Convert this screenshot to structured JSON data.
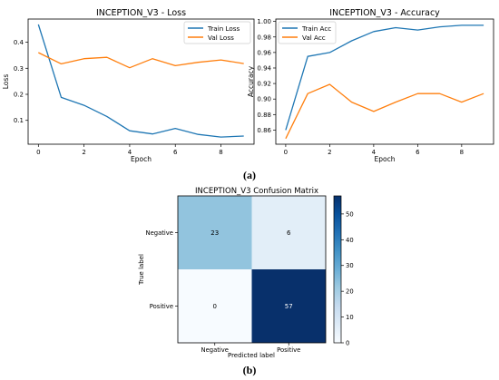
{
  "panel_labels": [
    "(a)",
    "(b)"
  ],
  "colors": {
    "train": "#1f77b4",
    "val": "#ff7f0e"
  },
  "chart_data": [
    {
      "type": "line",
      "title": "INCEPTION_V3 - Loss",
      "xlabel": "Epoch",
      "ylabel": "Loss",
      "x": [
        0,
        1,
        2,
        3,
        4,
        5,
        6,
        7,
        8,
        9
      ],
      "xlim": [
        -0.45,
        9.45
      ],
      "ylim": [
        0.0085,
        0.489
      ],
      "xticks": [
        0,
        2,
        4,
        6,
        8
      ],
      "yticks": [
        0.1,
        0.2,
        0.3,
        0.4
      ],
      "xticklabels": [
        "0",
        "2",
        "4",
        "6",
        "8"
      ],
      "yticklabels": [
        "0.1",
        "0.2",
        "0.3",
        "0.4"
      ],
      "legend_position": "top-right",
      "series": [
        {
          "name": "Train Loss",
          "color": "#1f77b4",
          "values": [
            0.468,
            0.188,
            0.158,
            0.115,
            0.06,
            0.048,
            0.069,
            0.046,
            0.036,
            0.04
          ]
        },
        {
          "name": "Val Loss",
          "color": "#ff7f0e",
          "values": [
            0.36,
            0.317,
            0.337,
            0.342,
            0.302,
            0.337,
            0.31,
            0.323,
            0.332,
            0.318
          ]
        }
      ]
    },
    {
      "type": "line",
      "title": "INCEPTION_V3 - Accuracy",
      "xlabel": "Epoch",
      "ylabel": "Accuracy",
      "x": [
        0,
        1,
        2,
        3,
        4,
        5,
        6,
        7,
        8,
        9
      ],
      "xlim": [
        -0.45,
        9.45
      ],
      "ylim": [
        0.8418,
        1.0031
      ],
      "xticks": [
        0,
        2,
        4,
        6,
        8
      ],
      "yticks": [
        0.86,
        0.88,
        0.9,
        0.92,
        0.94,
        0.96,
        0.98,
        1.0
      ],
      "xticklabels": [
        "0",
        "2",
        "4",
        "6",
        "8"
      ],
      "yticklabels": [
        "0.86",
        "0.88",
        "0.90",
        "0.92",
        "0.94",
        "0.96",
        "0.98",
        "1.00"
      ],
      "legend_position": "top-left",
      "series": [
        {
          "name": "Train Acc",
          "color": "#1f77b4",
          "values": [
            0.86,
            0.955,
            0.96,
            0.975,
            0.987,
            0.992,
            0.989,
            0.993,
            0.995,
            0.995
          ]
        },
        {
          "name": "Val Acc",
          "color": "#ff7f0e",
          "values": [
            0.849,
            0.907,
            0.919,
            0.896,
            0.884,
            0.896,
            0.907,
            0.907,
            0.896,
            0.907
          ]
        }
      ]
    },
    {
      "type": "heatmap",
      "title": "INCEPTION_V3 Confusion Matrix",
      "xlabel": "Predicted label",
      "ylabel": "True label",
      "row_labels": [
        "Negative",
        "Positive"
      ],
      "col_labels": [
        "Negative",
        "Positive"
      ],
      "values": [
        [
          23,
          6
        ],
        [
          0,
          57
        ]
      ],
      "colorbar_range": [
        0,
        57
      ],
      "colorbar_ticks": [
        0,
        10,
        20,
        30,
        40,
        50
      ],
      "colormap": "Blues"
    }
  ]
}
